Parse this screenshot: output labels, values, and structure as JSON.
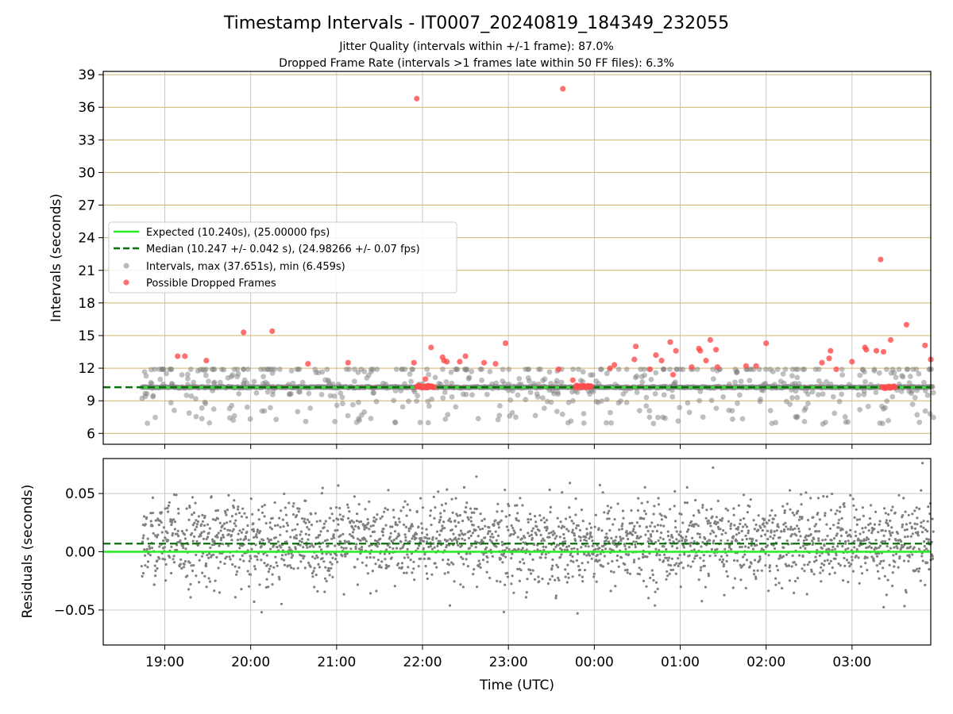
{
  "figure": {
    "title": "Timestamp Intervals - IT0007_20240819_184349_232055",
    "subtitle_1": "Jitter Quality (intervals within +/-1 frame): 87.0%",
    "subtitle_2": "Dropped Frame Rate (intervals >1 frames late within 50 FF files): 6.3%"
  },
  "colors": {
    "expected": "#22ee22",
    "median": "#0a6e0a",
    "intervals": "#808080",
    "dropped": "#ff4d4d",
    "gold_grid": "#d2b46a",
    "gray_grid": "#c8c8c8"
  },
  "chart_data": [
    {
      "type": "scatter",
      "ylabel": "Intervals (seconds)",
      "xlim": [
        "18:17",
        "03:55"
      ],
      "ylim": [
        5,
        39.3
      ],
      "x_ticks": [
        "19:00",
        "20:00",
        "21:00",
        "22:00",
        "23:00",
        "00:00",
        "01:00",
        "02:00",
        "03:00"
      ],
      "y_ticks": [
        6,
        9,
        12,
        15,
        18,
        21,
        24,
        27,
        30,
        33,
        36,
        39
      ],
      "grid": "on",
      "legend_position": "center-left",
      "legend": {
        "expected": "Expected (10.240s), (25.00000 fps)",
        "median": "Median (10.247 +/- 0.042 s), (24.98266 +/- 0.07 fps)",
        "intervals": "Intervals, max (37.651s), min (6.459s)",
        "dropped": "Possible Dropped Frames"
      },
      "expected_value": 10.24,
      "median_value": 10.247,
      "dropped_points": [
        [
          "19:09",
          13.1
        ],
        [
          "19:14",
          13.1
        ],
        [
          "19:29",
          12.7
        ],
        [
          "19:55",
          15.3
        ],
        [
          "20:15",
          15.4
        ],
        [
          "20:40",
          12.4
        ],
        [
          "21:08",
          12.5
        ],
        [
          "21:54",
          12.5
        ],
        [
          "21:56",
          36.8
        ],
        [
          "22:02",
          11.0
        ],
        [
          "22:06",
          13.9
        ],
        [
          "22:14",
          13.0
        ],
        [
          "22:15",
          12.7
        ],
        [
          "22:17",
          12.6
        ],
        [
          "22:26",
          12.6
        ],
        [
          "22:30",
          13.1
        ],
        [
          "22:43",
          12.5
        ],
        [
          "22:51",
          12.4
        ],
        [
          "22:58",
          14.3
        ],
        [
          "23:35",
          11.9
        ],
        [
          "23:38",
          37.7
        ],
        [
          "23:45",
          10.9
        ],
        [
          "00:11",
          12.0
        ],
        [
          "00:14",
          12.3
        ],
        [
          "00:28",
          12.8
        ],
        [
          "00:29",
          14.0
        ],
        [
          "00:39",
          11.9
        ],
        [
          "00:43",
          13.2
        ],
        [
          "00:47",
          12.7
        ],
        [
          "00:53",
          14.4
        ],
        [
          "00:55",
          11.4
        ],
        [
          "00:57",
          13.6
        ],
        [
          "01:08",
          12.1
        ],
        [
          "01:13",
          13.8
        ],
        [
          "01:14",
          13.6
        ],
        [
          "01:18",
          12.7
        ],
        [
          "01:21",
          14.6
        ],
        [
          "01:25",
          13.7
        ],
        [
          "01:26",
          12.1
        ],
        [
          "01:46",
          12.2
        ],
        [
          "01:53",
          12.2
        ],
        [
          "02:00",
          14.3
        ],
        [
          "02:39",
          12.5
        ],
        [
          "02:44",
          12.9
        ],
        [
          "02:45",
          13.6
        ],
        [
          "02:49",
          11.9
        ],
        [
          "03:00",
          12.6
        ],
        [
          "03:09",
          13.9
        ],
        [
          "03:10",
          13.7
        ],
        [
          "03:17",
          13.6
        ],
        [
          "03:20",
          22.0
        ],
        [
          "03:22",
          13.5
        ],
        [
          "03:27",
          14.6
        ],
        [
          "03:38",
          16.0
        ],
        [
          "03:51",
          14.1
        ],
        [
          "03:55",
          12.8
        ]
      ],
      "dropped_clusters": [
        {
          "from": "21:56",
          "to": "22:08",
          "value": 10.3
        },
        {
          "from": "23:47",
          "to": "23:58",
          "value": 10.3
        },
        {
          "from": "03:21",
          "to": "03:30",
          "value": 10.25
        }
      ]
    },
    {
      "type": "scatter",
      "xlabel": "Time (UTC)",
      "ylabel": "Residuals (seconds)",
      "xlim": [
        "18:17",
        "03:55"
      ],
      "ylim": [
        -0.08,
        0.08
      ],
      "x_ticks": [
        "19:00",
        "20:00",
        "21:00",
        "22:00",
        "23:00",
        "00:00",
        "01:00",
        "02:00",
        "03:00"
      ],
      "y_ticks": [
        {
          "value": 0.05,
          "label": "0.05"
        },
        {
          "value": 0.0,
          "label": "0.00"
        },
        {
          "value": -0.05,
          "label": "−0.05"
        }
      ],
      "grid": "on",
      "expected_value": 0.0,
      "median_value": 0.007,
      "residual_mean": 0.008,
      "residual_spread": 0.018,
      "residual_count": 2400
    }
  ]
}
